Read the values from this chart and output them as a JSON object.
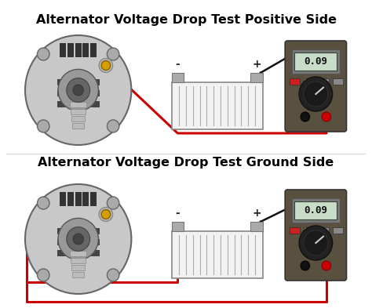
{
  "title1": "Alternator Voltage Drop Test Positive Side",
  "title2": "Alternator Voltage Drop Test Ground Side",
  "title_fontsize": 11.5,
  "title_color": "#000000",
  "bg_color": "#ffffff",
  "display_value": "0.09",
  "wire_red": "#cc0000",
  "wire_black": "#111111",
  "multimeter_body": "#5a5040",
  "multimeter_display_bg": "#c8dcc8",
  "multimeter_display_border": "#333333",
  "battery_outline": "#999999",
  "battery_fill": "#f4f4f4",
  "alternator_outer": "#c0c0c0",
  "alternator_inner": "#888888",
  "terminal_gold": "#d4a000",
  "terminal_gold_border": "#8B6000"
}
